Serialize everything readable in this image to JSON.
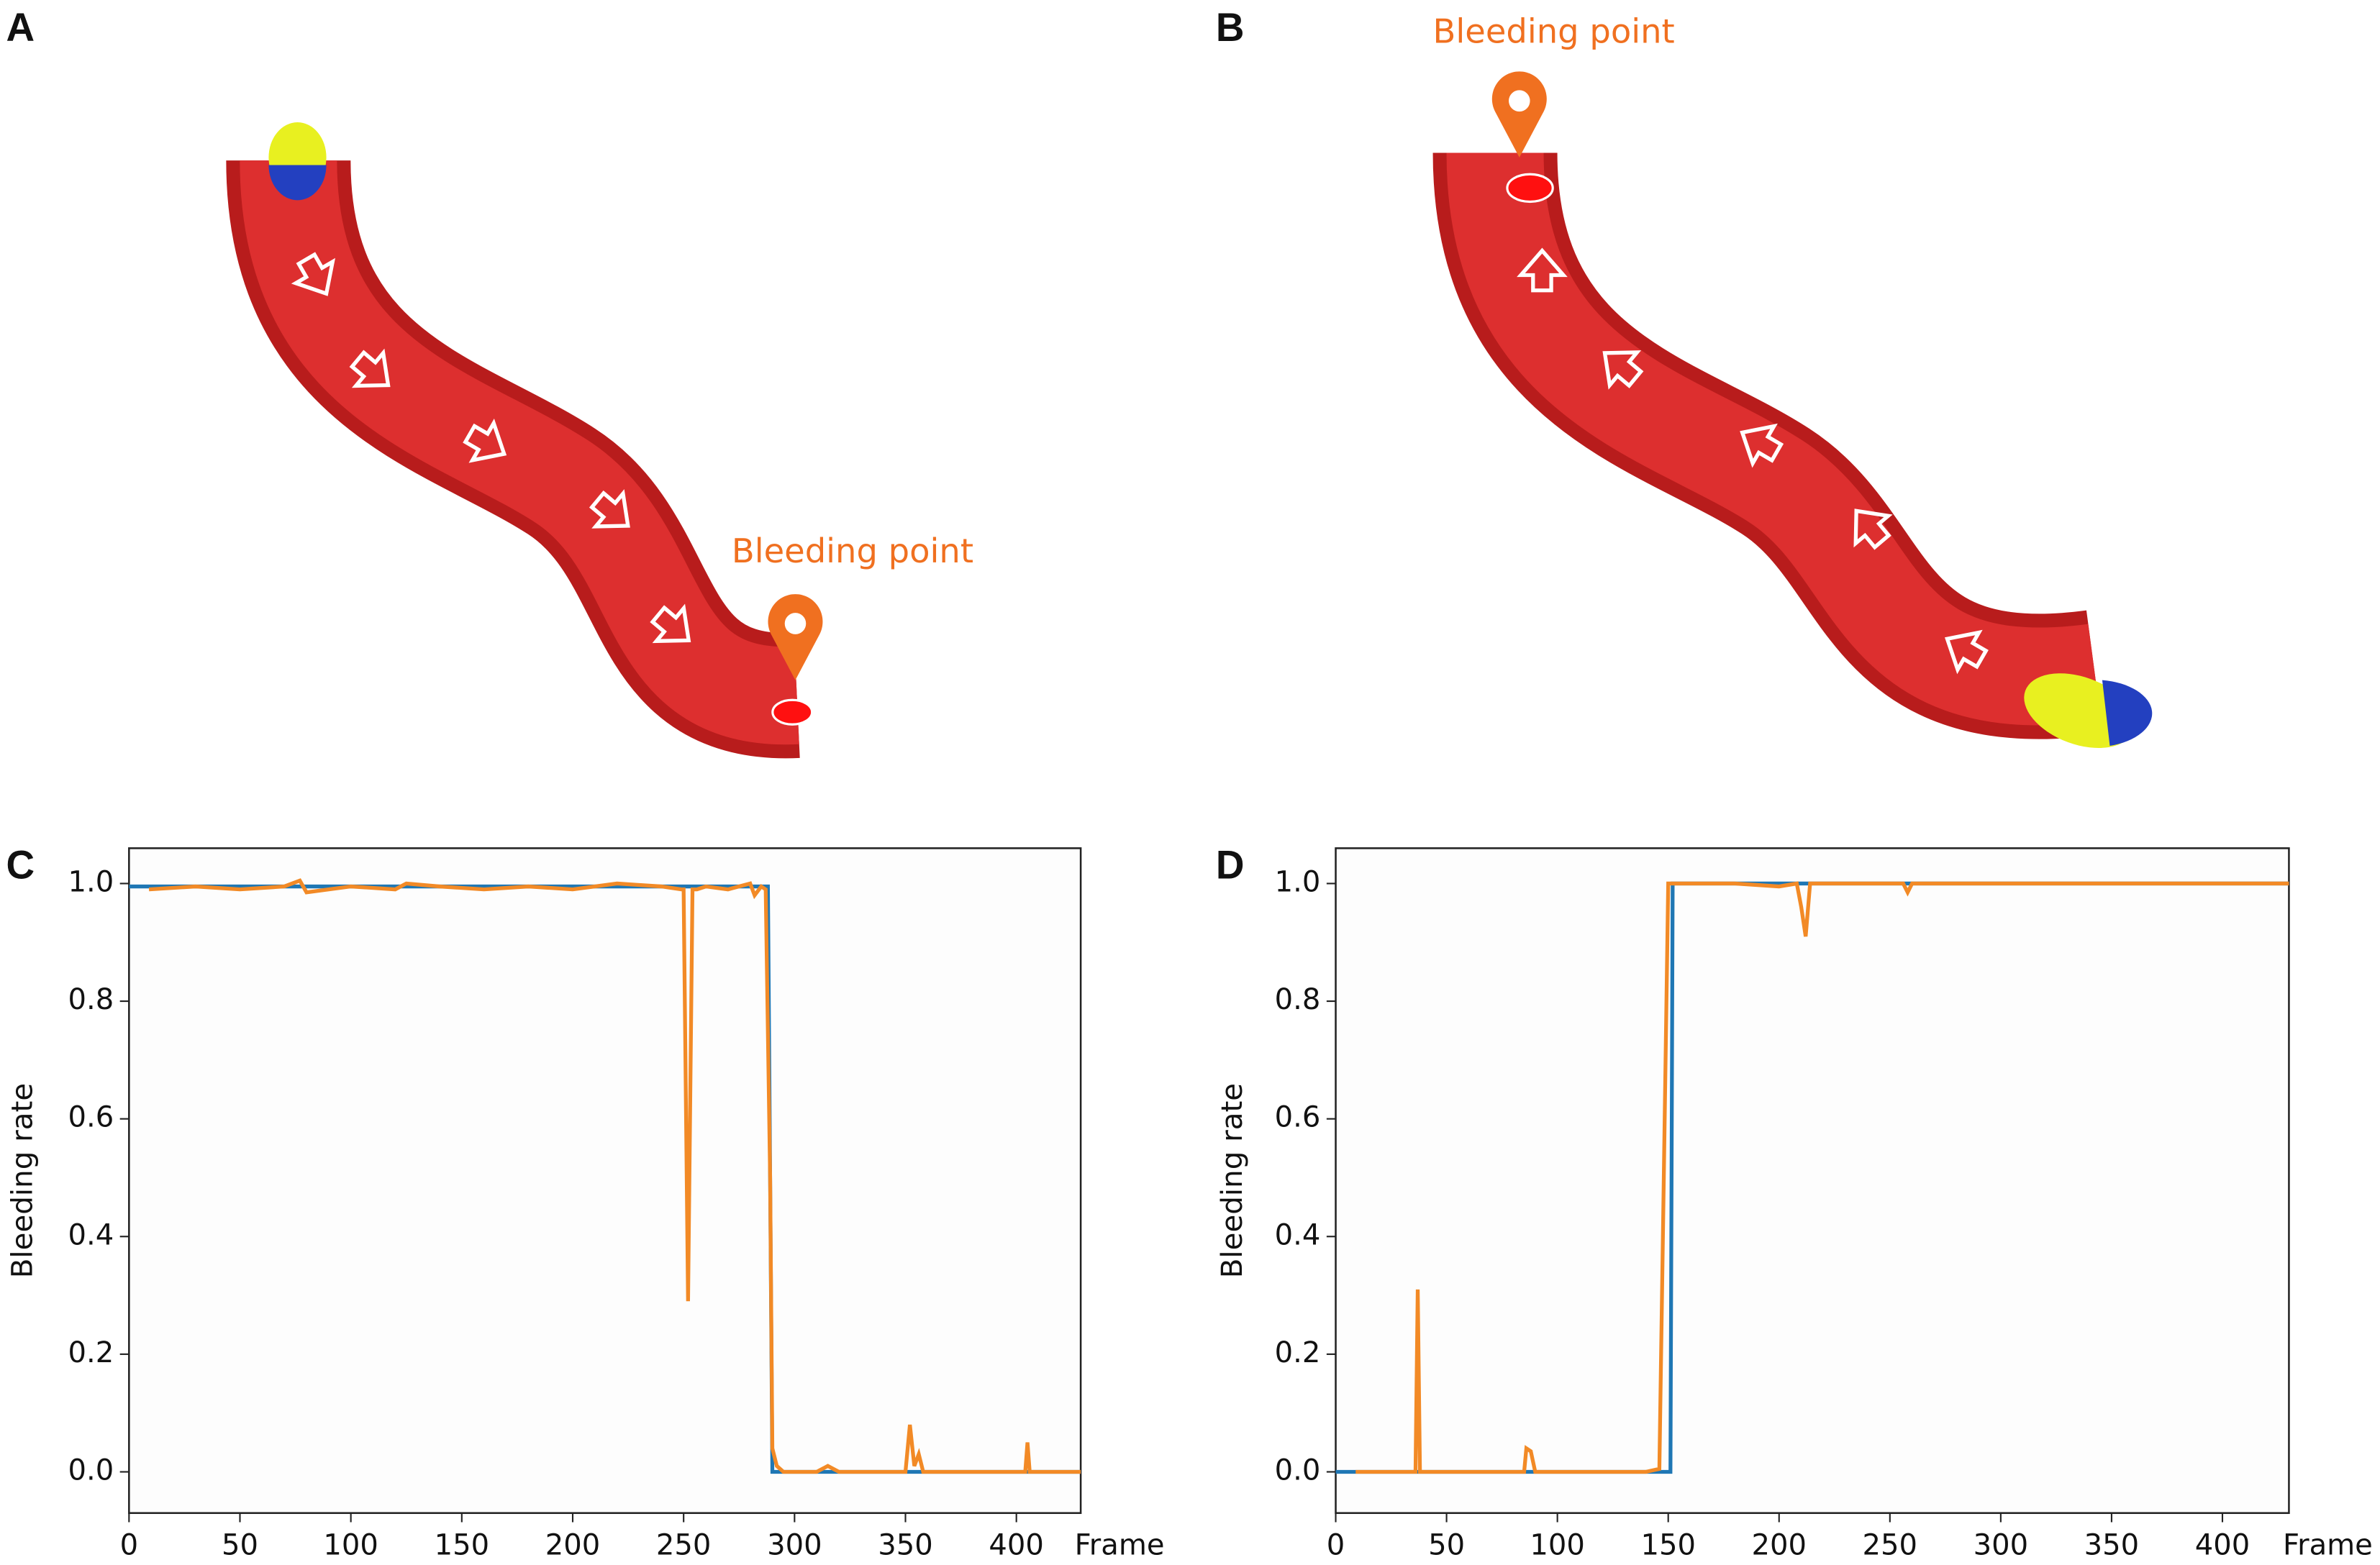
{
  "illustrations": [
    {
      "panel": "A",
      "annotation": "Bleeding point"
    },
    {
      "panel": "B",
      "annotation": "Bleeding point"
    }
  ],
  "chart_data": [
    {
      "type": "line",
      "panel": "C",
      "xlabel": "Frame",
      "ylabel": "Bleeding rate",
      "xlim": [
        0,
        429
      ],
      "ylim": [
        -0.07,
        1.06
      ],
      "xticks": [
        0,
        50,
        100,
        150,
        200,
        250,
        300,
        350,
        400
      ],
      "yticks": [
        {
          "value": 0,
          "label": "0.0"
        },
        0.2,
        0.4,
        0.6,
        0.8,
        {
          "value": 1,
          "label": "1.0"
        }
      ],
      "series": [
        {
          "color": "#1f77b4",
          "x": [
            0,
            288,
            290,
            429
          ],
          "values": [
            0.995,
            0.995,
            0,
            0
          ]
        },
        {
          "color": "#f28a26",
          "x": [
            9,
            30,
            50,
            70,
            77,
            80,
            100,
            120,
            125,
            140,
            160,
            180,
            200,
            220,
            240,
            249,
            250,
            252,
            254,
            256,
            260,
            270,
            280,
            282,
            285,
            287,
            289,
            290,
            292,
            295,
            300,
            310,
            315,
            320,
            340,
            350,
            352,
            354,
            356,
            358,
            360,
            380,
            400,
            404,
            405,
            406,
            408,
            420,
            429
          ],
          "values": [
            0.99,
            0.995,
            0.99,
            0.995,
            1.005,
            0.985,
            0.995,
            0.99,
            1.0,
            0.995,
            0.99,
            0.995,
            0.99,
            1.0,
            0.995,
            0.99,
            0.99,
            0.29,
            0.99,
            0.99,
            0.995,
            0.99,
            1.0,
            0.98,
            0.995,
            0.99,
            0.5,
            0.04,
            0.01,
            0.0,
            0.0,
            0.0,
            0.01,
            0.0,
            0.0,
            0.0,
            0.08,
            0.01,
            0.03,
            0.0,
            0.0,
            0.0,
            0.0,
            0.0,
            0.05,
            0.0,
            0.0,
            0.0,
            0.0
          ]
        }
      ]
    },
    {
      "type": "line",
      "panel": "D",
      "xlabel": "Frame",
      "ylabel": "Bleeding rate",
      "xlim": [
        0,
        430
      ],
      "ylim": [
        -0.07,
        1.06
      ],
      "xticks": [
        0,
        50,
        100,
        150,
        200,
        250,
        300,
        350,
        400
      ],
      "yticks": [
        {
          "value": 0,
          "label": "0.0"
        },
        0.2,
        0.4,
        0.6,
        0.8,
        {
          "value": 1,
          "label": "1.0"
        }
      ],
      "series": [
        {
          "color": "#1f77b4",
          "x": [
            0,
            151,
            152,
            430
          ],
          "values": [
            0,
            0,
            1,
            1
          ]
        },
        {
          "color": "#f28a26",
          "x": [
            9,
            30,
            36,
            37,
            38,
            40,
            60,
            85,
            86,
            88,
            90,
            100,
            120,
            140,
            146,
            148,
            150,
            160,
            180,
            200,
            208,
            210,
            212,
            214,
            220,
            240,
            256,
            258,
            260,
            280,
            300,
            350,
            400,
            430
          ],
          "values": [
            0,
            0,
            0,
            0.31,
            0,
            0,
            0,
            0,
            0.04,
            0.035,
            0,
            0,
            0,
            0,
            0.005,
            0.5,
            1.0,
            1.0,
            1.0,
            0.995,
            1.0,
            0.96,
            0.91,
            1.0,
            1.0,
            1.0,
            1.0,
            0.985,
            1.0,
            1.0,
            1.0,
            1.0,
            1.0,
            1.0
          ]
        }
      ]
    }
  ]
}
